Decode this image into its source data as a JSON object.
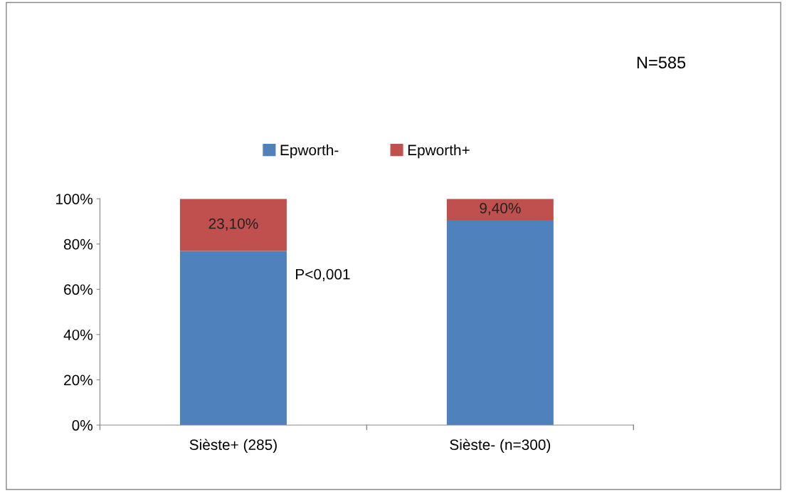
{
  "chart_data": {
    "type": "bar",
    "stacked": true,
    "categories": [
      "Sièste+ (285)",
      "Sièste- (n=300)"
    ],
    "series": [
      {
        "name": "Epworth-",
        "color": "#4f81bd",
        "values": [
          76.9,
          90.6
        ]
      },
      {
        "name": "Epworth+",
        "color": "#c0504d",
        "values": [
          23.1,
          9.4
        ],
        "value_labels": [
          "23,10%",
          "9,40%"
        ]
      }
    ],
    "ylim": [
      0,
      100
    ],
    "yticks": [
      {
        "value": 0,
        "label": "0%"
      },
      {
        "value": 20,
        "label": "20%"
      },
      {
        "value": 40,
        "label": "40%"
      },
      {
        "value": 60,
        "label": "60%"
      },
      {
        "value": 80,
        "label": "80%"
      },
      {
        "value": 100,
        "label": "100%"
      }
    ],
    "grid": false,
    "legend": "top",
    "annotations": [
      "N=585",
      "P<0,001"
    ]
  }
}
